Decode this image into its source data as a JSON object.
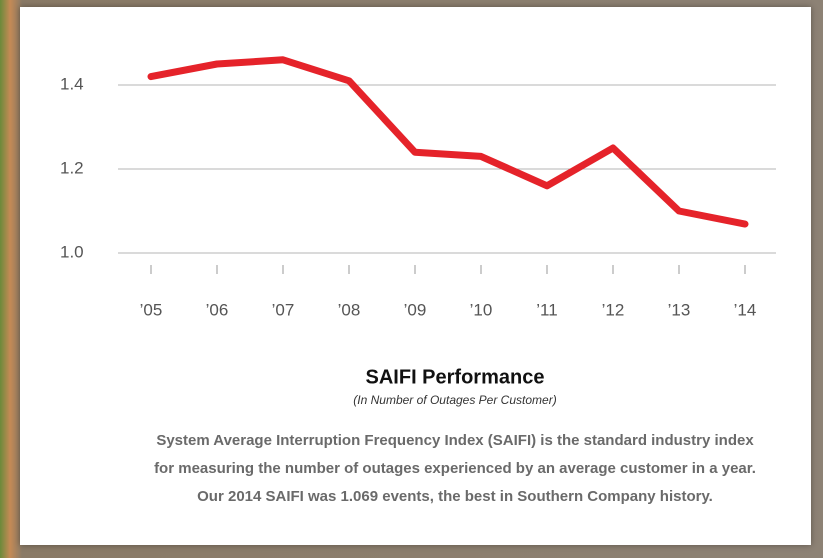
{
  "chart_data": {
    "type": "line",
    "title": "SAIFI Performance",
    "subtitle": "(In Number of Outages Per Customer)",
    "description": [
      "System Average Interruption Frequency Index (SAIFI) is the standard industry index",
      "for measuring the number of outages experienced by an average customer in a year.",
      "Our 2014 SAIFI was 1.069 events, the best in Southern Company history."
    ],
    "categories": [
      "’05",
      "’06",
      "’07",
      "’08",
      "’09",
      "’10",
      "’11",
      "’12",
      "’13",
      "’14"
    ],
    "values": [
      1.42,
      1.45,
      1.46,
      1.41,
      1.24,
      1.23,
      1.16,
      1.25,
      1.1,
      1.069
    ],
    "color": "#e5232a",
    "ylim": [
      1.0,
      1.5
    ],
    "yticks": [
      {
        "value": 1,
        "label": "1.0"
      },
      1.2,
      1.4
    ],
    "grid": true
  }
}
